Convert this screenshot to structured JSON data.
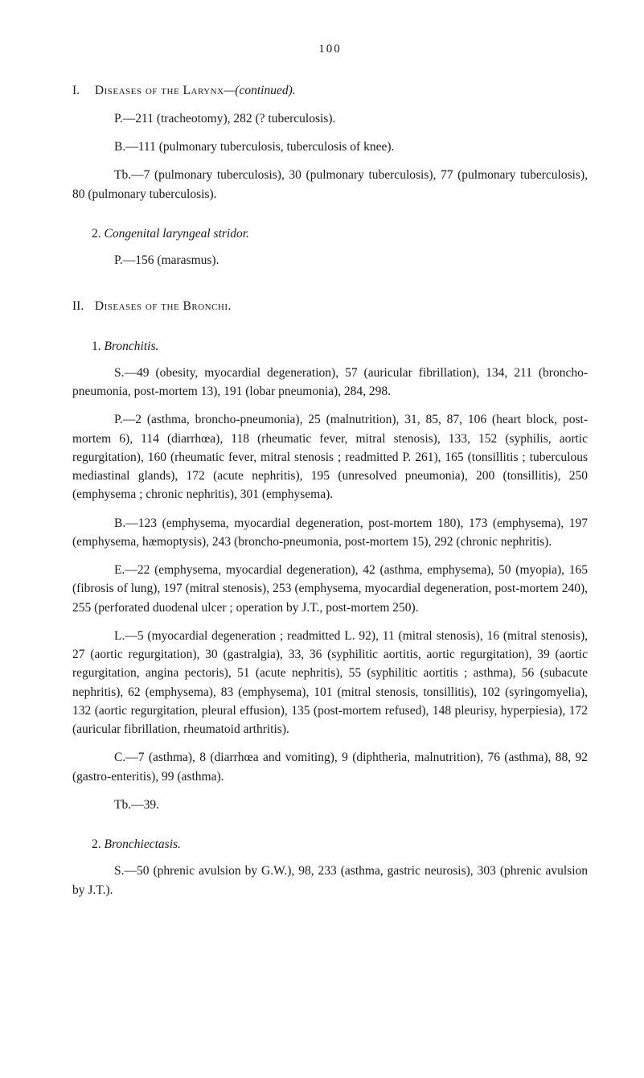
{
  "page": {
    "number": "100",
    "font_family": "Georgia, serif",
    "text_color": "#1a1a1a",
    "background": "#ffffff"
  },
  "sectionI": {
    "roman": "I.",
    "heading_sc": "Diseases of the Larynx",
    "heading_italic": "—(continued).",
    "p1": "P.—211 (tracheotomy), 282 (? tuberculosis).",
    "p2": "B.—111 (pulmonary tuberculosis, tuberculosis of knee).",
    "p3": "Tb.—7 (pulmonary tuberculosis), 30 (pulmonary tuberculosis), 77 (pulmonary tuberculosis), 80 (pulmonary tuberculosis).",
    "sub2_num": "2.",
    "sub2_title": "Congenital laryngeal stridor.",
    "sub2_p1": "P.—156 (marasmus)."
  },
  "sectionII": {
    "roman": "II.",
    "heading_sc": "Diseases of the Bronchi.",
    "sub1_num": "1.",
    "sub1_title": "Bronchitis.",
    "p_S": "S.—49 (obesity, myocardial degeneration), 57 (auricular fibrillation), 134, 211 (broncho-pneumonia, post-mortem 13), 191 (lobar pneumonia), 284, 298.",
    "p_P": "P.—2 (asthma, broncho-pneumonia), 25 (malnutrition), 31, 85, 87, 106 (heart block, post-mortem 6), 114 (diarrhœa), 118 (rheumatic fever, mitral stenosis), 133, 152 (syphilis, aortic regurgitation), 160 (rheumatic fever, mitral stenosis ; readmitted P. 261), 165 (tonsillitis ; tuberculous mediastinal glands), 172 (acute nephritis), 195 (unresolved pneumonia), 200 (tonsillitis), 250 (emphysema ; chronic nephritis), 301 (emphysema).",
    "p_B": "B.—123 (emphysema, myocardial degeneration, post-mortem 180), 173 (emphysema), 197 (emphysema, hæmoptysis), 243 (broncho-pneumonia, post-mortem 15), 292 (chronic nephritis).",
    "p_E": "E.—22 (emphysema, myocardial degeneration), 42 (asthma, emphysema), 50 (myopia), 165 (fibrosis of lung), 197 (mitral stenosis), 253 (emphysema, myocardial degeneration, post-mortem 240), 255 (perforated duodenal ulcer ; operation by J.T., post-mortem 250).",
    "p_L": "L.—5 (myocardial degeneration ; readmitted L. 92), 11 (mitral stenosis), 16 (mitral stenosis), 27 (aortic regurgitation), 30 (gastralgia), 33, 36 (syphilitic aortitis, aortic regurgitation), 39 (aortic regurgitation, angina pectoris), 51 (acute nephritis), 55 (syphilitic aortitis ; asthma), 56 (subacute nephritis), 62 (emphysema), 83 (emphysema), 101 (mitral stenosis, tonsillitis), 102 (syringomyelia), 132 (aortic regurgitation, pleural effusion), 135 (post-mortem refused), 148 pleurisy, hyperpiesia), 172 (auricular fibrillation, rheumatoid arthritis).",
    "p_C": "C.—7 (asthma), 8 (diarrhœa and vomiting), 9 (diphtheria, malnutrition), 76 (asthma), 88, 92 (gastro-enteritis), 99 (asthma).",
    "p_Tb": "Tb.—39.",
    "sub2_num": "2.",
    "sub2_title": "Bronchiectasis.",
    "p2_S": "S.—50 (phrenic avulsion by G.W.), 98, 233 (asthma, gastric neurosis), 303 (phrenic avulsion by J.T.)."
  }
}
